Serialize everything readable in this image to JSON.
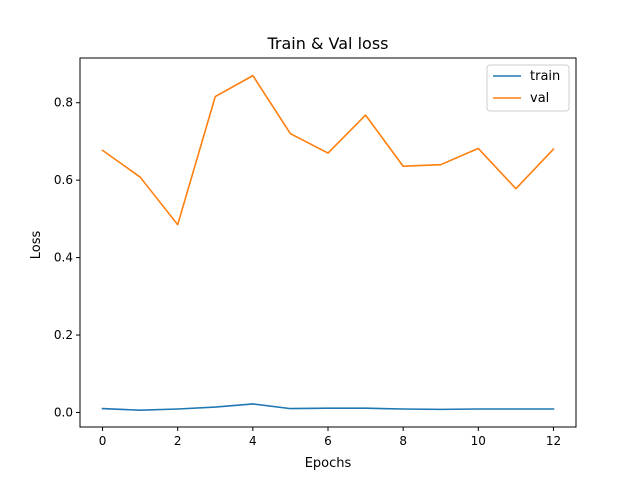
{
  "chart_data": {
    "type": "line",
    "title": "Train & Val loss",
    "xlabel": "Epochs",
    "ylabel": "Loss",
    "x": [
      0,
      1,
      2,
      3,
      4,
      5,
      6,
      7,
      8,
      9,
      10,
      11,
      12
    ],
    "series": [
      {
        "name": "train",
        "color": "#1f77b4",
        "values": [
          0.01,
          0.006,
          0.009,
          0.014,
          0.022,
          0.01,
          0.011,
          0.011,
          0.009,
          0.008,
          0.009,
          0.009,
          0.009
        ]
      },
      {
        "name": "val",
        "color": "#ff7f0e",
        "values": [
          0.677,
          0.608,
          0.485,
          0.816,
          0.87,
          0.72,
          0.67,
          0.768,
          0.636,
          0.64,
          0.682,
          0.578,
          0.68
        ]
      }
    ],
    "xlim": [
      -0.6,
      12.6
    ],
    "ylim": [
      -0.0375,
      0.9155
    ],
    "xticks": [
      0,
      2,
      4,
      6,
      8,
      10,
      12
    ],
    "xtick_labels": [
      "0",
      "2",
      "4",
      "6",
      "8",
      "10",
      "12"
    ],
    "yticks": [
      0.0,
      0.2,
      0.4,
      0.6,
      0.8
    ],
    "ytick_labels": [
      "0.0",
      "0.2",
      "0.4",
      "0.6",
      "0.8"
    ],
    "grid": false,
    "legend_position": "top-right"
  }
}
